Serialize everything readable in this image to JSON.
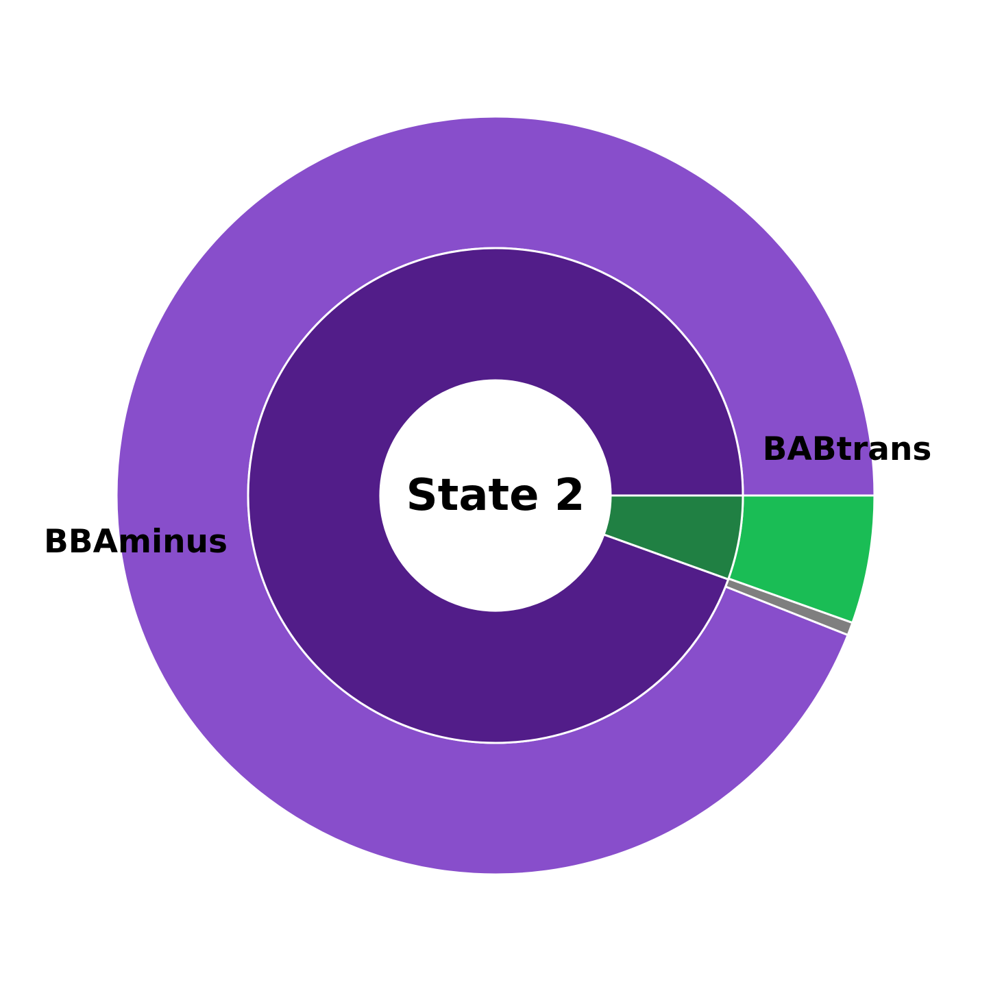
{
  "chart_data": {
    "type": "pie",
    "subtype": "nested-donut",
    "center_label": "State 2",
    "outer_ring": [
      {
        "label": "BBAminus",
        "value": 94.0,
        "color": "#884ecb"
      },
      {
        "label": "",
        "value": 0.55,
        "color": "#7f7f7f"
      },
      {
        "label": "BABtrans",
        "value": 5.45,
        "color": "#1abd55"
      }
    ],
    "inner_ring": [
      {
        "label": "",
        "value": 94.5,
        "color": "#521d89"
      },
      {
        "label": "",
        "value": 5.5,
        "color": "#208043"
      }
    ],
    "start_angle_deg": 0,
    "direction": "counterclockwise",
    "edge_color": "#ffffff",
    "legend": "none"
  }
}
